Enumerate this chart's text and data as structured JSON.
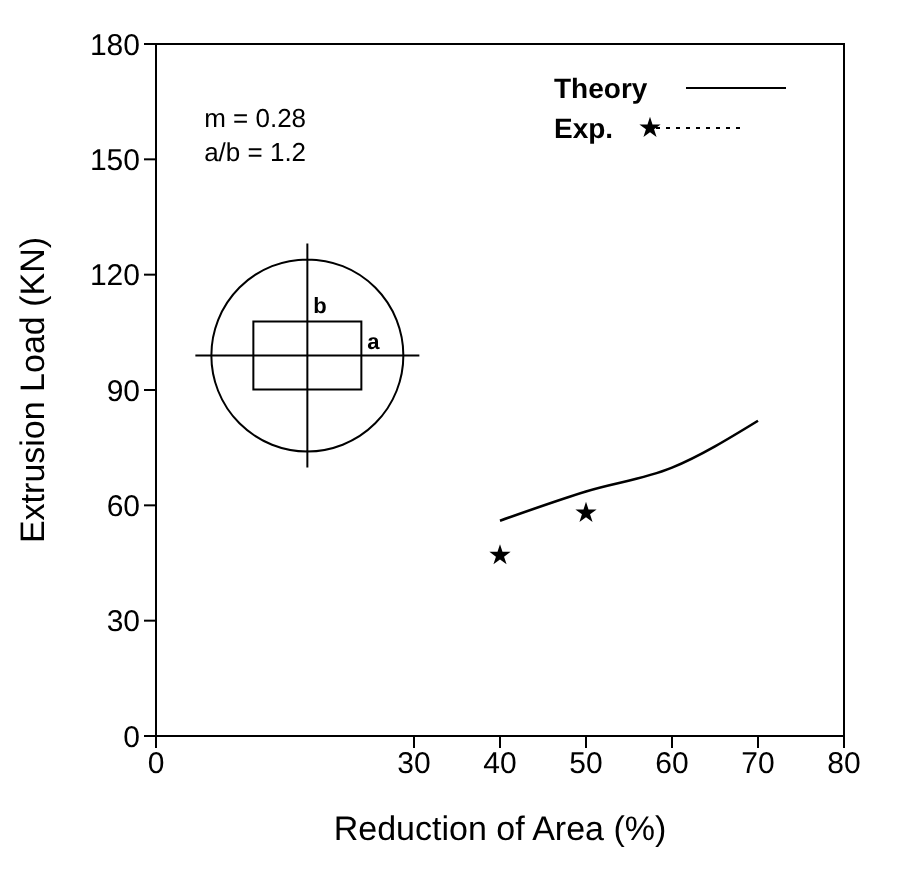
{
  "chart_data": {
    "type": "line",
    "xlabel": "Reduction of Area (%)",
    "ylabel": "Extrusion Load (KN)",
    "xlim": [
      0,
      80
    ],
    "xticks": [
      0,
      30,
      40,
      50,
      60,
      70,
      80
    ],
    "ylim": [
      0,
      180
    ],
    "yticks": [
      0,
      30,
      60,
      90,
      120,
      150,
      180
    ],
    "grid": false,
    "legend": "top right",
    "annotations": [
      "m = 0.28",
      "a/b = 1.2",
      "a",
      "b"
    ],
    "series": [
      {
        "name": "Theory",
        "color": "#000000",
        "x": [
          40,
          50,
          60,
          70
        ],
        "values": [
          56,
          63.6,
          69.8,
          82
        ]
      },
      {
        "name": "Exp.",
        "type": "scatter",
        "marker": "star",
        "color": "#000000",
        "x": [
          40,
          50
        ],
        "values": [
          47,
          58
        ]
      }
    ]
  }
}
